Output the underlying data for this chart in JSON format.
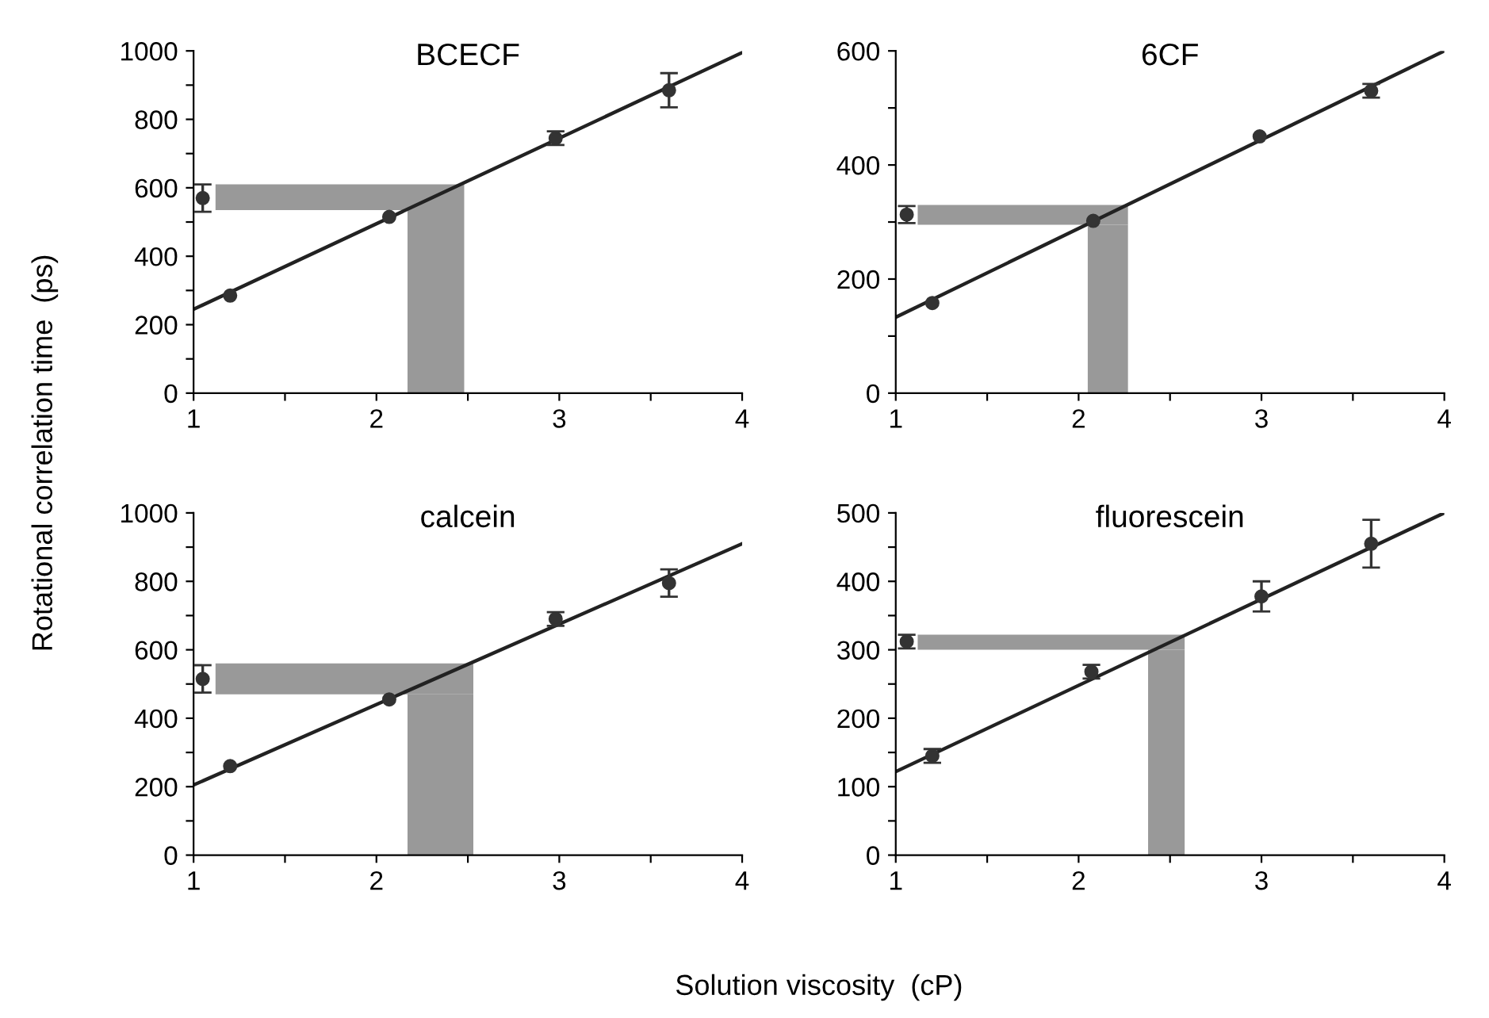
{
  "chart_data": [
    {
      "type": "scatter",
      "title": "BCECF",
      "ylabel": "Rotational correlation time  (ps)",
      "xlim": [
        1,
        4
      ],
      "ylim": [
        0,
        1000
      ],
      "xticks": [
        1,
        {
          "value": 1.5,
          "label": null
        },
        2,
        {
          "value": 2.5,
          "label": null
        },
        3,
        {
          "value": 3.5,
          "label": null
        },
        4
      ],
      "yticks": [
        0,
        {
          "value": 100,
          "label": null
        },
        200,
        {
          "value": 300,
          "label": null
        },
        400,
        {
          "value": 500,
          "label": null
        },
        600,
        {
          "value": 700,
          "label": null
        },
        800,
        {
          "value": 900,
          "label": null
        },
        1000
      ],
      "grid": false,
      "series": [
        {
          "type": "scatter",
          "marker": "circle",
          "color": "#333333",
          "x": [
            1.05,
            1.2,
            2.07,
            2.98,
            3.6
          ],
          "values": [
            570,
            285,
            515,
            745,
            885
          ],
          "errors": [
            40,
            null,
            null,
            20,
            50
          ]
        },
        {
          "type": "line",
          "marker": "none",
          "color": "#222222",
          "x": [
            1,
            4
          ],
          "values": [
            245,
            995
          ]
        }
      ],
      "bands": [
        {
          "axis": "y",
          "from": 535,
          "to": 610,
          "color": "#999999"
        },
        {
          "axis": "x",
          "from": 2.17,
          "to": 2.48,
          "color": "#999999"
        }
      ]
    },
    {
      "type": "scatter",
      "title": "6CF",
      "xlim": [
        1,
        4
      ],
      "ylim": [
        0,
        600
      ],
      "xticks": [
        1,
        {
          "value": 1.5,
          "label": null
        },
        2,
        {
          "value": 2.5,
          "label": null
        },
        3,
        {
          "value": 3.5,
          "label": null
        },
        4
      ],
      "yticks": [
        0,
        {
          "value": 100,
          "label": null
        },
        200,
        {
          "value": 300,
          "label": null
        },
        400,
        {
          "value": 500,
          "label": null
        },
        600
      ],
      "grid": false,
      "series": [
        {
          "type": "scatter",
          "marker": "circle",
          "color": "#333333",
          "x": [
            1.06,
            1.2,
            2.08,
            2.99,
            3.6
          ],
          "values": [
            313,
            158,
            302,
            450,
            530
          ],
          "errors": [
            15,
            null,
            null,
            null,
            12
          ]
        },
        {
          "type": "line",
          "marker": "none",
          "color": "#222222",
          "x": [
            1,
            4
          ],
          "values": [
            133,
            600
          ]
        }
      ],
      "bands": [
        {
          "axis": "y",
          "from": 295,
          "to": 330,
          "color": "#999999"
        },
        {
          "axis": "x",
          "from": 2.05,
          "to": 2.27,
          "color": "#999999"
        }
      ]
    },
    {
      "type": "scatter",
      "title": "calcein",
      "xlabel": "Solution viscosity  (cP)",
      "xlim": [
        1,
        4
      ],
      "ylim": [
        0,
        1000
      ],
      "xticks": [
        1,
        {
          "value": 1.5,
          "label": null
        },
        2,
        {
          "value": 2.5,
          "label": null
        },
        3,
        {
          "value": 3.5,
          "label": null
        },
        4
      ],
      "yticks": [
        0,
        {
          "value": 100,
          "label": null
        },
        200,
        {
          "value": 300,
          "label": null
        },
        400,
        {
          "value": 500,
          "label": null
        },
        600,
        {
          "value": 700,
          "label": null
        },
        800,
        {
          "value": 900,
          "label": null
        },
        1000
      ],
      "grid": false,
      "series": [
        {
          "type": "scatter",
          "marker": "circle",
          "color": "#333333",
          "x": [
            1.05,
            1.2,
            2.07,
            2.98,
            3.6
          ],
          "values": [
            515,
            260,
            455,
            690,
            795
          ],
          "errors": [
            40,
            null,
            null,
            20,
            40
          ]
        },
        {
          "type": "line",
          "marker": "none",
          "color": "#222222",
          "x": [
            1,
            4
          ],
          "values": [
            205,
            910
          ]
        }
      ],
      "bands": [
        {
          "axis": "y",
          "from": 470,
          "to": 560,
          "color": "#999999"
        },
        {
          "axis": "x",
          "from": 2.17,
          "to": 2.53,
          "color": "#999999"
        }
      ]
    },
    {
      "type": "scatter",
      "title": "fluorescein",
      "xlim": [
        1,
        4
      ],
      "ylim": [
        0,
        500
      ],
      "xticks": [
        1,
        {
          "value": 1.5,
          "label": null
        },
        2,
        {
          "value": 2.5,
          "label": null
        },
        3,
        {
          "value": 3.5,
          "label": null
        },
        4
      ],
      "yticks": [
        0,
        {
          "value": 50,
          "label": null
        },
        100,
        {
          "value": 150,
          "label": null
        },
        200,
        {
          "value": 250,
          "label": null
        },
        300,
        {
          "value": 350,
          "label": null
        },
        400,
        {
          "value": 450,
          "label": null
        },
        500
      ],
      "grid": false,
      "series": [
        {
          "type": "scatter",
          "marker": "circle",
          "color": "#333333",
          "x": [
            1.06,
            1.2,
            2.07,
            3.0,
            3.6
          ],
          "values": [
            312,
            145,
            268,
            378,
            455
          ],
          "errors": [
            10,
            10,
            10,
            22,
            35
          ]
        },
        {
          "type": "line",
          "marker": "none",
          "color": "#222222",
          "x": [
            1,
            4
          ],
          "values": [
            122,
            500
          ]
        }
      ],
      "bands": [
        {
          "axis": "y",
          "from": 300,
          "to": 322,
          "color": "#999999"
        },
        {
          "axis": "x",
          "from": 2.38,
          "to": 2.58,
          "color": "#999999"
        }
      ]
    }
  ]
}
